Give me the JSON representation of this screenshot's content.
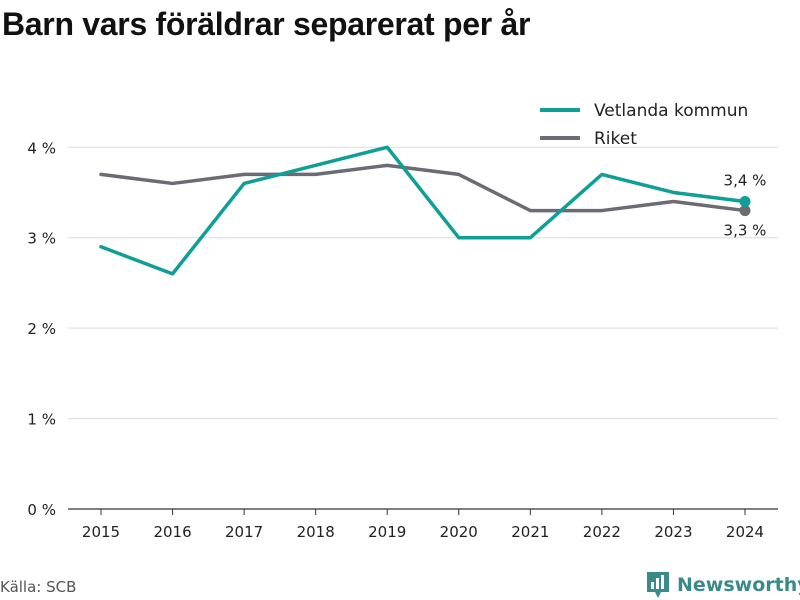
{
  "chart_data": {
    "type": "line",
    "title": "Barn vars föräldrar separerat per år",
    "x": [
      "2015",
      "2016",
      "2017",
      "2018",
      "2019",
      "2020",
      "2021",
      "2022",
      "2023",
      "2024"
    ],
    "yticks": [
      "0 %",
      "1 %",
      "2 %",
      "3 %",
      "4 %"
    ],
    "ylim": [
      0,
      4.6
    ],
    "grid": true,
    "legend_position": "top-right",
    "series": [
      {
        "name": "Vetlanda kommun",
        "color": "#0e9f96",
        "values": [
          2.9,
          2.6,
          3.6,
          3.8,
          4.0,
          3.0,
          3.0,
          3.7,
          3.5,
          3.4
        ],
        "end_label": "3,4 %"
      },
      {
        "name": "Riket",
        "color": "#6b6b73",
        "values": [
          3.7,
          3.6,
          3.7,
          3.7,
          3.8,
          3.7,
          3.3,
          3.3,
          3.4,
          3.3
        ],
        "end_label": "3,3 %"
      }
    ]
  },
  "footer": {
    "source": "Källa: SCB",
    "brand": "Newsworthy",
    "brand_icon": "newsworthy-logo-icon"
  }
}
